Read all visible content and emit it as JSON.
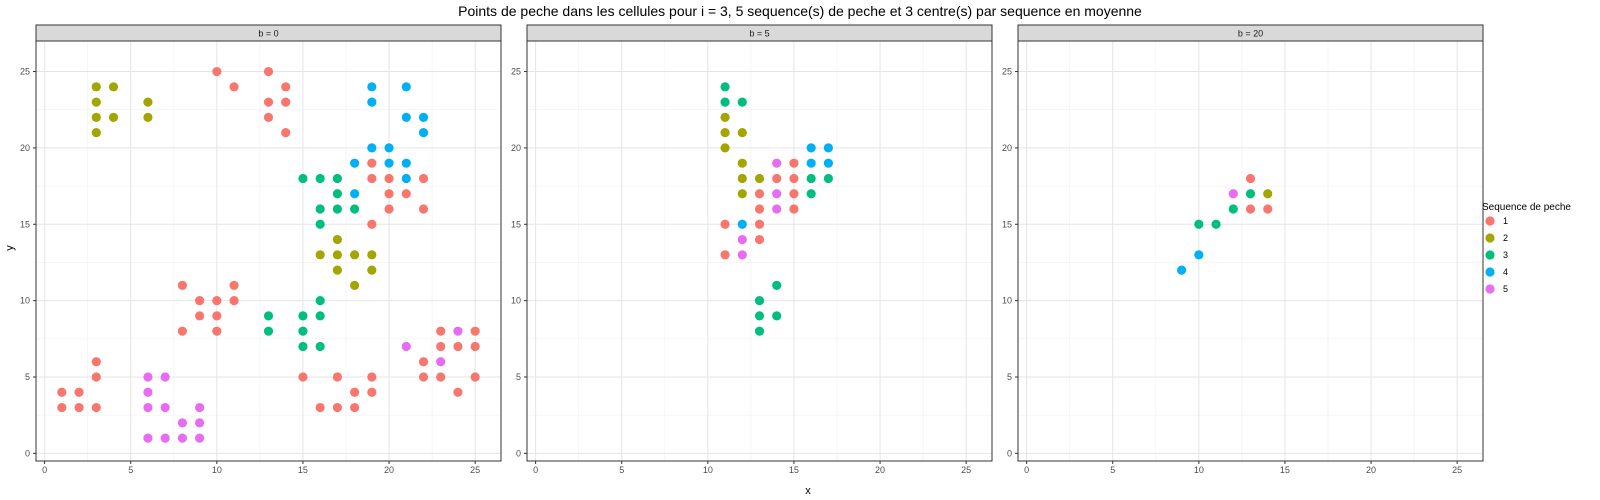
{
  "chart_data": {
    "type": "scatter",
    "title": "Points de peche dans les cellules pour i = 3, 5 sequence(s) de peche et 3 centre(s) par sequence en moyenne",
    "xlabel": "x",
    "ylabel": "y",
    "xlim": [
      -0.5,
      26.5
    ],
    "ylim": [
      -0.5,
      27
    ],
    "x_ticks": [
      0,
      5,
      10,
      15,
      20,
      25
    ],
    "y_ticks": [
      0,
      5,
      10,
      15,
      20,
      25
    ],
    "grid": true,
    "legend": {
      "title": "Sequence de peche",
      "placement": "right",
      "entries": [
        "1",
        "2",
        "3",
        "4",
        "5"
      ]
    },
    "colors": {
      "1": "#F8766D",
      "2": "#A3A500",
      "3": "#00BF7D",
      "4": "#00B0F6",
      "5": "#E76BF3"
    },
    "panels": [
      {
        "strip": "b = 0",
        "points": [
          {
            "x": 10,
            "y": 25,
            "s": "1"
          },
          {
            "x": 11,
            "y": 24,
            "s": "1"
          },
          {
            "x": 13,
            "y": 25,
            "s": "1"
          },
          {
            "x": 13,
            "y": 23,
            "s": "1"
          },
          {
            "x": 13,
            "y": 22,
            "s": "1"
          },
          {
            "x": 14,
            "y": 24,
            "s": "1"
          },
          {
            "x": 14,
            "y": 23,
            "s": "1"
          },
          {
            "x": 14,
            "y": 21,
            "s": "1"
          },
          {
            "x": 19,
            "y": 19,
            "s": "1"
          },
          {
            "x": 19,
            "y": 18,
            "s": "1"
          },
          {
            "x": 19,
            "y": 15,
            "s": "1"
          },
          {
            "x": 20,
            "y": 18,
            "s": "1"
          },
          {
            "x": 20,
            "y": 17,
            "s": "1"
          },
          {
            "x": 20,
            "y": 16,
            "s": "1"
          },
          {
            "x": 21,
            "y": 17,
            "s": "1"
          },
          {
            "x": 22,
            "y": 18,
            "s": "1"
          },
          {
            "x": 22,
            "y": 16,
            "s": "1"
          },
          {
            "x": 8,
            "y": 11,
            "s": "1"
          },
          {
            "x": 8,
            "y": 8,
            "s": "1"
          },
          {
            "x": 9,
            "y": 10,
            "s": "1"
          },
          {
            "x": 9,
            "y": 9,
            "s": "1"
          },
          {
            "x": 10,
            "y": 10,
            "s": "1"
          },
          {
            "x": 10,
            "y": 9,
            "s": "1"
          },
          {
            "x": 10,
            "y": 8,
            "s": "1"
          },
          {
            "x": 11,
            "y": 11,
            "s": "1"
          },
          {
            "x": 11,
            "y": 10,
            "s": "1"
          },
          {
            "x": 1,
            "y": 4,
            "s": "1"
          },
          {
            "x": 1,
            "y": 3,
            "s": "1"
          },
          {
            "x": 2,
            "y": 4,
            "s": "1"
          },
          {
            "x": 2,
            "y": 3,
            "s": "1"
          },
          {
            "x": 3,
            "y": 6,
            "s": "1"
          },
          {
            "x": 3,
            "y": 5,
            "s": "1"
          },
          {
            "x": 3,
            "y": 3,
            "s": "1"
          },
          {
            "x": 15,
            "y": 5,
            "s": "1"
          },
          {
            "x": 16,
            "y": 3,
            "s": "1"
          },
          {
            "x": 17,
            "y": 5,
            "s": "1"
          },
          {
            "x": 17,
            "y": 3,
            "s": "1"
          },
          {
            "x": 18,
            "y": 4,
            "s": "1"
          },
          {
            "x": 18,
            "y": 3,
            "s": "1"
          },
          {
            "x": 19,
            "y": 5,
            "s": "1"
          },
          {
            "x": 19,
            "y": 4,
            "s": "1"
          },
          {
            "x": 22,
            "y": 6,
            "s": "1"
          },
          {
            "x": 22,
            "y": 5,
            "s": "1"
          },
          {
            "x": 23,
            "y": 8,
            "s": "1"
          },
          {
            "x": 23,
            "y": 7,
            "s": "1"
          },
          {
            "x": 23,
            "y": 5,
            "s": "1"
          },
          {
            "x": 24,
            "y": 7,
            "s": "1"
          },
          {
            "x": 24,
            "y": 4,
            "s": "1"
          },
          {
            "x": 25,
            "y": 8,
            "s": "1"
          },
          {
            "x": 25,
            "y": 7,
            "s": "1"
          },
          {
            "x": 25,
            "y": 5,
            "s": "1"
          },
          {
            "x": 3,
            "y": 24,
            "s": "2"
          },
          {
            "x": 3,
            "y": 23,
            "s": "2"
          },
          {
            "x": 3,
            "y": 22,
            "s": "2"
          },
          {
            "x": 3,
            "y": 21,
            "s": "2"
          },
          {
            "x": 4,
            "y": 24,
            "s": "2"
          },
          {
            "x": 4,
            "y": 22,
            "s": "2"
          },
          {
            "x": 6,
            "y": 23,
            "s": "2"
          },
          {
            "x": 6,
            "y": 22,
            "s": "2"
          },
          {
            "x": 16,
            "y": 13,
            "s": "2"
          },
          {
            "x": 17,
            "y": 14,
            "s": "2"
          },
          {
            "x": 17,
            "y": 13,
            "s": "2"
          },
          {
            "x": 17,
            "y": 12,
            "s": "2"
          },
          {
            "x": 18,
            "y": 13,
            "s": "2"
          },
          {
            "x": 18,
            "y": 11,
            "s": "2"
          },
          {
            "x": 19,
            "y": 13,
            "s": "2"
          },
          {
            "x": 19,
            "y": 12,
            "s": "2"
          },
          {
            "x": 15,
            "y": 18,
            "s": "3"
          },
          {
            "x": 16,
            "y": 18,
            "s": "3"
          },
          {
            "x": 16,
            "y": 16,
            "s": "3"
          },
          {
            "x": 16,
            "y": 15,
            "s": "3"
          },
          {
            "x": 17,
            "y": 18,
            "s": "3"
          },
          {
            "x": 17,
            "y": 17,
            "s": "3"
          },
          {
            "x": 17,
            "y": 16,
            "s": "3"
          },
          {
            "x": 18,
            "y": 16,
            "s": "3"
          },
          {
            "x": 13,
            "y": 9,
            "s": "3"
          },
          {
            "x": 13,
            "y": 8,
            "s": "3"
          },
          {
            "x": 15,
            "y": 9,
            "s": "3"
          },
          {
            "x": 15,
            "y": 8,
            "s": "3"
          },
          {
            "x": 15,
            "y": 7,
            "s": "3"
          },
          {
            "x": 16,
            "y": 10,
            "s": "3"
          },
          {
            "x": 16,
            "y": 9,
            "s": "3"
          },
          {
            "x": 16,
            "y": 7,
            "s": "3"
          },
          {
            "x": 19,
            "y": 24,
            "s": "4"
          },
          {
            "x": 19,
            "y": 23,
            "s": "4"
          },
          {
            "x": 21,
            "y": 24,
            "s": "4"
          },
          {
            "x": 21,
            "y": 22,
            "s": "4"
          },
          {
            "x": 22,
            "y": 22,
            "s": "4"
          },
          {
            "x": 22,
            "y": 21,
            "s": "4"
          },
          {
            "x": 18,
            "y": 19,
            "s": "4"
          },
          {
            "x": 18,
            "y": 17,
            "s": "4"
          },
          {
            "x": 19,
            "y": 20,
            "s": "4"
          },
          {
            "x": 20,
            "y": 20,
            "s": "4"
          },
          {
            "x": 20,
            "y": 19,
            "s": "4"
          },
          {
            "x": 21,
            "y": 19,
            "s": "4"
          },
          {
            "x": 21,
            "y": 18,
            "s": "4"
          },
          {
            "x": 6,
            "y": 5,
            "s": "5"
          },
          {
            "x": 6,
            "y": 4,
            "s": "5"
          },
          {
            "x": 6,
            "y": 3,
            "s": "5"
          },
          {
            "x": 6,
            "y": 1,
            "s": "5"
          },
          {
            "x": 7,
            "y": 5,
            "s": "5"
          },
          {
            "x": 7,
            "y": 3,
            "s": "5"
          },
          {
            "x": 7,
            "y": 1,
            "s": "5"
          },
          {
            "x": 8,
            "y": 2,
            "s": "5"
          },
          {
            "x": 8,
            "y": 1,
            "s": "5"
          },
          {
            "x": 9,
            "y": 3,
            "s": "5"
          },
          {
            "x": 9,
            "y": 2,
            "s": "5"
          },
          {
            "x": 9,
            "y": 1,
            "s": "5"
          },
          {
            "x": 21,
            "y": 7,
            "s": "5"
          },
          {
            "x": 23,
            "y": 6,
            "s": "5"
          },
          {
            "x": 24,
            "y": 8,
            "s": "5"
          }
        ]
      },
      {
        "strip": "b = 5",
        "points": [
          {
            "x": 11,
            "y": 24,
            "s": "3"
          },
          {
            "x": 11,
            "y": 23,
            "s": "3"
          },
          {
            "x": 12,
            "y": 23,
            "s": "3"
          },
          {
            "x": 11,
            "y": 22,
            "s": "2"
          },
          {
            "x": 11,
            "y": 21,
            "s": "2"
          },
          {
            "x": 11,
            "y": 20,
            "s": "2"
          },
          {
            "x": 12,
            "y": 21,
            "s": "2"
          },
          {
            "x": 12,
            "y": 19,
            "s": "2"
          },
          {
            "x": 12,
            "y": 18,
            "s": "2"
          },
          {
            "x": 12,
            "y": 17,
            "s": "2"
          },
          {
            "x": 13,
            "y": 18,
            "s": "2"
          },
          {
            "x": 13,
            "y": 17,
            "s": "1"
          },
          {
            "x": 13,
            "y": 16,
            "s": "1"
          },
          {
            "x": 13,
            "y": 15,
            "s": "1"
          },
          {
            "x": 13,
            "y": 14,
            "s": "1"
          },
          {
            "x": 11,
            "y": 15,
            "s": "1"
          },
          {
            "x": 11,
            "y": 13,
            "s": "1"
          },
          {
            "x": 14,
            "y": 18,
            "s": "1"
          },
          {
            "x": 15,
            "y": 19,
            "s": "1"
          },
          {
            "x": 15,
            "y": 18,
            "s": "1"
          },
          {
            "x": 15,
            "y": 17,
            "s": "1"
          },
          {
            "x": 15,
            "y": 16,
            "s": "1"
          },
          {
            "x": 14,
            "y": 19,
            "s": "5"
          },
          {
            "x": 14,
            "y": 17,
            "s": "5"
          },
          {
            "x": 14,
            "y": 16,
            "s": "5"
          },
          {
            "x": 12,
            "y": 14,
            "s": "5"
          },
          {
            "x": 12,
            "y": 13,
            "s": "5"
          },
          {
            "x": 12,
            "y": 15,
            "s": "4"
          },
          {
            "x": 16,
            "y": 20,
            "s": "4"
          },
          {
            "x": 16,
            "y": 19,
            "s": "4"
          },
          {
            "x": 17,
            "y": 20,
            "s": "4"
          },
          {
            "x": 17,
            "y": 19,
            "s": "4"
          },
          {
            "x": 16,
            "y": 18,
            "s": "3"
          },
          {
            "x": 16,
            "y": 17,
            "s": "3"
          },
          {
            "x": 17,
            "y": 18,
            "s": "3"
          },
          {
            "x": 13,
            "y": 10,
            "s": "3"
          },
          {
            "x": 13,
            "y": 9,
            "s": "3"
          },
          {
            "x": 13,
            "y": 8,
            "s": "3"
          },
          {
            "x": 14,
            "y": 11,
            "s": "3"
          },
          {
            "x": 14,
            "y": 9,
            "s": "3"
          }
        ]
      },
      {
        "strip": "b = 20",
        "points": [
          {
            "x": 13,
            "y": 18,
            "s": "1"
          },
          {
            "x": 13,
            "y": 16,
            "s": "1"
          },
          {
            "x": 14,
            "y": 16,
            "s": "1"
          },
          {
            "x": 14,
            "y": 17,
            "s": "2"
          },
          {
            "x": 10,
            "y": 15,
            "s": "3"
          },
          {
            "x": 11,
            "y": 15,
            "s": "3"
          },
          {
            "x": 12,
            "y": 16,
            "s": "3"
          },
          {
            "x": 13,
            "y": 17,
            "s": "3"
          },
          {
            "x": 9,
            "y": 12,
            "s": "4"
          },
          {
            "x": 10,
            "y": 13,
            "s": "4"
          },
          {
            "x": 12,
            "y": 17,
            "s": "5"
          }
        ]
      }
    ]
  }
}
